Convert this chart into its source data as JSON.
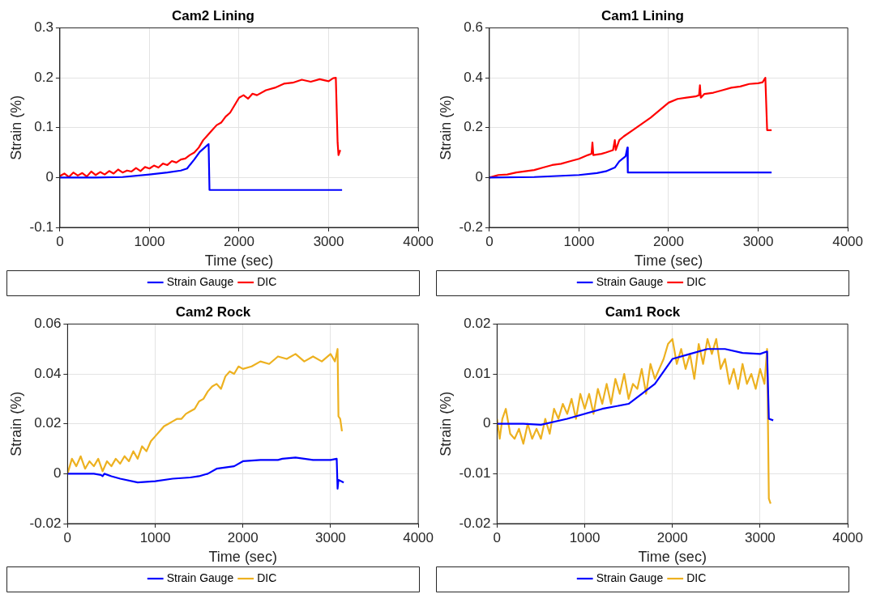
{
  "chart_data": [
    {
      "type": "line",
      "title": "Cam2 Lining",
      "xlabel": "Time (sec)",
      "ylabel": "Strain (%)",
      "xlim": [
        0,
        4000
      ],
      "xticks": [
        0,
        1000,
        2000,
        3000,
        4000
      ],
      "ylim": [
        -0.1,
        0.3
      ],
      "yticks": [
        -0.1,
        0,
        0.1,
        0.2,
        0.3
      ],
      "grid": true,
      "legend": "bottom",
      "marker": "none",
      "line_style": "solid",
      "series": [
        {
          "name": "Strain Gauge",
          "color": "#0000ff",
          "x": [
            0,
            400,
            700,
            1000,
            1200,
            1350,
            1420,
            1450,
            1500,
            1560,
            1660,
            1670,
            3150
          ],
          "values": [
            0,
            0,
            0.001,
            0.006,
            0.01,
            0.014,
            0.018,
            0.025,
            0.036,
            0.051,
            0.067,
            -0.025,
            -0.025
          ]
        },
        {
          "name": "DIC",
          "color": "#ff0000",
          "x": [
            0,
            50,
            100,
            150,
            200,
            250,
            300,
            350,
            400,
            450,
            500,
            550,
            600,
            650,
            700,
            750,
            800,
            850,
            900,
            950,
            1000,
            1050,
            1100,
            1150,
            1200,
            1250,
            1300,
            1350,
            1400,
            1450,
            1500,
            1550,
            1600,
            1650,
            1700,
            1750,
            1800,
            1850,
            1900,
            1950,
            2000,
            2050,
            2100,
            2150,
            2200,
            2300,
            2400,
            2500,
            2600,
            2700,
            2800,
            2900,
            3000,
            3050,
            3080,
            3100,
            3110,
            3130
          ],
          "values": [
            0.003,
            0.008,
            0.001,
            0.01,
            0.004,
            0.009,
            0.002,
            0.012,
            0.005,
            0.011,
            0.006,
            0.013,
            0.008,
            0.016,
            0.01,
            0.014,
            0.012,
            0.019,
            0.013,
            0.021,
            0.018,
            0.024,
            0.02,
            0.028,
            0.025,
            0.033,
            0.03,
            0.036,
            0.038,
            0.045,
            0.05,
            0.06,
            0.075,
            0.085,
            0.095,
            0.105,
            0.11,
            0.122,
            0.13,
            0.145,
            0.16,
            0.165,
            0.158,
            0.168,
            0.165,
            0.175,
            0.18,
            0.188,
            0.19,
            0.196,
            0.192,
            0.197,
            0.193,
            0.199,
            0.2,
            0.07,
            0.045,
            0.055
          ]
        }
      ]
    },
    {
      "type": "line",
      "title": "Cam1 Lining",
      "xlabel": "Time (sec)",
      "ylabel": "Strain (%)",
      "xlim": [
        0,
        4000
      ],
      "xticks": [
        0,
        1000,
        2000,
        3000,
        4000
      ],
      "ylim": [
        -0.2,
        0.6
      ],
      "yticks": [
        -0.2,
        0,
        0.2,
        0.4,
        0.6
      ],
      "grid": true,
      "legend": "bottom",
      "marker": "none",
      "line_style": "solid",
      "series": [
        {
          "name": "Strain Gauge",
          "color": "#0000ff",
          "x": [
            0,
            500,
            1000,
            1200,
            1300,
            1400,
            1450,
            1520,
            1540,
            1545,
            3150
          ],
          "values": [
            0,
            0.002,
            0.01,
            0.018,
            0.025,
            0.04,
            0.065,
            0.085,
            0.12,
            0.02,
            0.02
          ]
        },
        {
          "name": "DIC",
          "color": "#ff0000",
          "x": [
            0,
            100,
            200,
            300,
            400,
            500,
            600,
            700,
            800,
            900,
            1000,
            1100,
            1140,
            1150,
            1160,
            1250,
            1300,
            1380,
            1400,
            1410,
            1450,
            1500,
            1600,
            1700,
            1800,
            1900,
            2000,
            2100,
            2200,
            2300,
            2340,
            2350,
            2360,
            2400,
            2500,
            2600,
            2700,
            2800,
            2900,
            3000,
            3050,
            3080,
            3100,
            3150
          ],
          "values": [
            0,
            0.01,
            0.012,
            0.02,
            0.025,
            0.03,
            0.04,
            0.05,
            0.055,
            0.065,
            0.075,
            0.09,
            0.095,
            0.14,
            0.09,
            0.095,
            0.1,
            0.11,
            0.15,
            0.11,
            0.15,
            0.165,
            0.19,
            0.215,
            0.24,
            0.27,
            0.3,
            0.315,
            0.32,
            0.325,
            0.33,
            0.37,
            0.32,
            0.335,
            0.34,
            0.35,
            0.36,
            0.365,
            0.375,
            0.378,
            0.382,
            0.4,
            0.19,
            0.19
          ]
        }
      ]
    },
    {
      "type": "line",
      "title": "Cam2 Rock",
      "xlabel": "Time (sec)",
      "ylabel": "Strain (%)",
      "xlim": [
        0,
        4000
      ],
      "xticks": [
        0,
        1000,
        2000,
        3000,
        4000
      ],
      "ylim": [
        -0.02,
        0.06
      ],
      "yticks": [
        -0.02,
        0,
        0.02,
        0.04,
        0.06
      ],
      "grid": true,
      "legend": "bottom",
      "marker": "none",
      "line_style": "solid",
      "series": [
        {
          "name": "Strain Gauge",
          "color": "#0000ff",
          "x": [
            0,
            300,
            380,
            400,
            420,
            500,
            600,
            800,
            1000,
            1200,
            1400,
            1500,
            1600,
            1700,
            1900,
            2000,
            2200,
            2400,
            2450,
            2600,
            2800,
            3000,
            3070,
            3080,
            3090,
            3150
          ],
          "values": [
            0,
            0,
            -0.0005,
            -0.001,
            0,
            -0.001,
            -0.002,
            -0.0035,
            -0.003,
            -0.002,
            -0.0015,
            -0.001,
            0,
            0.002,
            0.003,
            0.005,
            0.0055,
            0.0055,
            0.006,
            0.0065,
            0.0055,
            0.0055,
            0.006,
            -0.006,
            -0.0025,
            -0.0035
          ]
        },
        {
          "name": "DIC",
          "color": "#edb120",
          "x": [
            0,
            50,
            100,
            150,
            200,
            250,
            300,
            350,
            400,
            450,
            500,
            550,
            600,
            650,
            700,
            750,
            800,
            850,
            900,
            950,
            1000,
            1050,
            1100,
            1150,
            1200,
            1250,
            1300,
            1350,
            1400,
            1450,
            1500,
            1550,
            1600,
            1650,
            1700,
            1750,
            1800,
            1850,
            1900,
            1950,
            2000,
            2100,
            2200,
            2300,
            2400,
            2500,
            2600,
            2700,
            2800,
            2900,
            3000,
            3050,
            3080,
            3090,
            3110,
            3130
          ],
          "values": [
            0,
            0.006,
            0.003,
            0.007,
            0.002,
            0.005,
            0.003,
            0.006,
            0.001,
            0.005,
            0.003,
            0.006,
            0.004,
            0.007,
            0.005,
            0.009,
            0.006,
            0.011,
            0.009,
            0.013,
            0.015,
            0.017,
            0.019,
            0.02,
            0.021,
            0.022,
            0.022,
            0.024,
            0.025,
            0.026,
            0.029,
            0.03,
            0.033,
            0.035,
            0.036,
            0.034,
            0.039,
            0.041,
            0.04,
            0.043,
            0.042,
            0.043,
            0.045,
            0.044,
            0.047,
            0.046,
            0.048,
            0.045,
            0.047,
            0.045,
            0.048,
            0.045,
            0.05,
            0.023,
            0.022,
            0.017
          ]
        }
      ]
    },
    {
      "type": "line",
      "title": "Cam1 Rock",
      "xlabel": "Time (sec)",
      "ylabel": "Strain (%)",
      "xlim": [
        0,
        4000
      ],
      "xticks": [
        0,
        1000,
        2000,
        3000,
        4000
      ],
      "ylim": [
        -0.02,
        0.02
      ],
      "yticks": [
        -0.02,
        -0.01,
        0,
        0.01,
        0.02
      ],
      "grid": true,
      "legend": "bottom",
      "marker": "none",
      "line_style": "solid",
      "series": [
        {
          "name": "Strain Gauge",
          "color": "#0000ff",
          "x": [
            0,
            300,
            500,
            800,
            1200,
            1500,
            1800,
            2000,
            2200,
            2400,
            2600,
            2800,
            3000,
            3080,
            3100,
            3150
          ],
          "values": [
            0,
            0,
            -0.0002,
            0.001,
            0.003,
            0.004,
            0.008,
            0.013,
            0.014,
            0.015,
            0.015,
            0.0142,
            0.014,
            0.0145,
            0.001,
            0.0007
          ]
        },
        {
          "name": "DIC",
          "color": "#edb120",
          "x": [
            0,
            30,
            60,
            100,
            150,
            200,
            250,
            300,
            350,
            400,
            450,
            500,
            550,
            600,
            650,
            700,
            750,
            800,
            850,
            900,
            950,
            1000,
            1050,
            1100,
            1150,
            1200,
            1250,
            1300,
            1350,
            1400,
            1450,
            1500,
            1550,
            1600,
            1650,
            1700,
            1750,
            1800,
            1850,
            1900,
            1950,
            2000,
            2050,
            2100,
            2150,
            2200,
            2250,
            2300,
            2350,
            2400,
            2450,
            2500,
            2550,
            2600,
            2650,
            2700,
            2750,
            2800,
            2850,
            2900,
            2950,
            3000,
            3050,
            3080,
            3100,
            3120
          ],
          "values": [
            0.001,
            -0.003,
            0.001,
            0.003,
            -0.002,
            -0.003,
            -0.001,
            -0.004,
            0,
            -0.003,
            -0.001,
            -0.003,
            0.001,
            -0.002,
            0.003,
            0.001,
            0.004,
            0.002,
            0.005,
            0.001,
            0.006,
            0.003,
            0.006,
            0.002,
            0.007,
            0.004,
            0.008,
            0.004,
            0.009,
            0.006,
            0.01,
            0.005,
            0.008,
            0.007,
            0.011,
            0.006,
            0.012,
            0.009,
            0.011,
            0.013,
            0.016,
            0.017,
            0.012,
            0.015,
            0.011,
            0.014,
            0.009,
            0.016,
            0.012,
            0.017,
            0.014,
            0.017,
            0.011,
            0.013,
            0.008,
            0.011,
            0.007,
            0.012,
            0.008,
            0.01,
            0.007,
            0.011,
            0.008,
            0.015,
            -0.015,
            -0.016
          ]
        }
      ]
    }
  ]
}
